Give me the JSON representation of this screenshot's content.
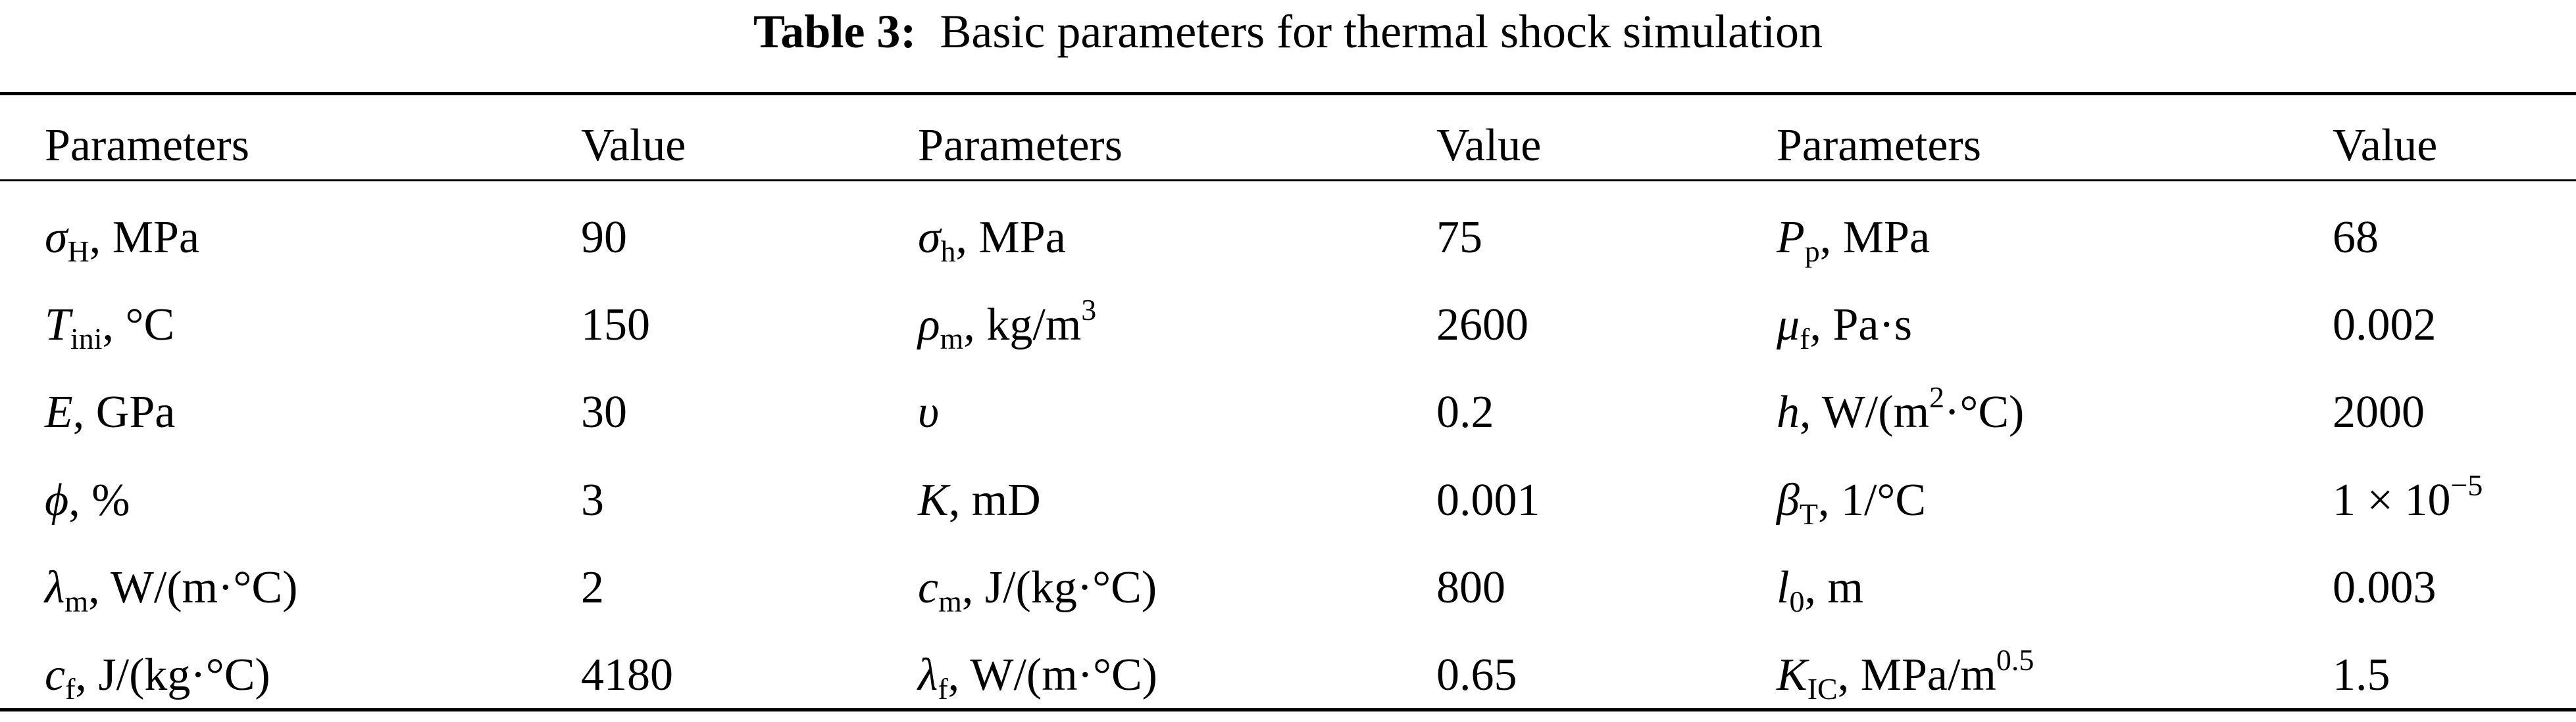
{
  "title": [
    {
      "b": "Table 3:"
    },
    "  Basic parameters for thermal shock simulation"
  ],
  "table": {
    "header": [
      "Parameters",
      "Value",
      "Parameters",
      "Value",
      "Parameters",
      "Value"
    ],
    "rows": [
      [
        [
          {
            "i": "σ"
          },
          {
            "sub": "H"
          },
          ", MPa"
        ],
        "90",
        [
          {
            "i": "σ"
          },
          {
            "sub": "h"
          },
          ", MPa"
        ],
        "75",
        [
          {
            "i": "P"
          },
          {
            "sub": "p"
          },
          ", MPa"
        ],
        "68"
      ],
      [
        [
          {
            "i": "T"
          },
          {
            "sub": "ini"
          },
          ", °C"
        ],
        "150",
        [
          {
            "i": "ρ"
          },
          {
            "sub": "m"
          },
          ", kg/m",
          {
            "sup": "3"
          }
        ],
        "2600",
        [
          {
            "i": "μ"
          },
          {
            "sub": "f"
          },
          ", Pa·s"
        ],
        "0.002"
      ],
      [
        [
          {
            "i": "E"
          },
          ", GPa"
        ],
        "30",
        [
          {
            "i": "υ"
          }
        ],
        "0.2",
        [
          {
            "i": "h"
          },
          ", W/(m",
          {
            "sup": "2"
          },
          "·°C)"
        ],
        "2000"
      ],
      [
        [
          {
            "i": "ϕ"
          },
          ", %"
        ],
        "3",
        [
          {
            "i": "K"
          },
          ", mD"
        ],
        "0.001",
        [
          {
            "i": "β"
          },
          {
            "sub": "T"
          },
          ", 1/°C"
        ],
        [
          "1 × 10",
          {
            "sup": "−5"
          }
        ]
      ],
      [
        [
          {
            "i": "λ"
          },
          {
            "sub": "m"
          },
          ", W/(m·°C)"
        ],
        "2",
        [
          {
            "i": "c"
          },
          {
            "sub": "m"
          },
          ", J/(kg·°C)"
        ],
        "800",
        [
          {
            "i": "l"
          },
          {
            "sub": "0"
          },
          ", m"
        ],
        "0.003"
      ],
      [
        [
          {
            "i": "c"
          },
          {
            "sub": "f"
          },
          ", J/(kg·°C)"
        ],
        "4180",
        [
          {
            "i": "λ"
          },
          {
            "sub": "f"
          },
          ", W/(m·°C)"
        ],
        "0.65",
        [
          {
            "i": "K"
          },
          {
            "sub": "IC"
          },
          ", MPa/m",
          {
            "sup": "0.5"
          }
        ],
        "1.5"
      ]
    ]
  }
}
